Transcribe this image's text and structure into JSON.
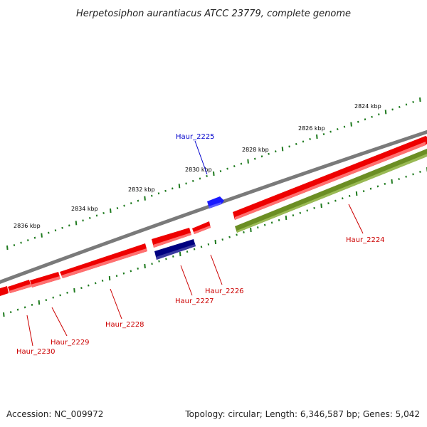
{
  "title": "Herpetosiphon aurantiacus ATCC 23779, complete genome",
  "footer": {
    "accession": "Accession: NC_009972",
    "summary": "Topology: circular; Length: 6,346,587 bp; Genes: 5,042"
  },
  "ruler": {
    "ticks": [
      "2824 kbp",
      "2826 kbp",
      "2828 kbp",
      "2830 kbp",
      "2832 kbp",
      "2834 kbp",
      "2836 kbp"
    ]
  },
  "genes": [
    {
      "id": "Haur_2224",
      "label": "Haur_2224",
      "strand": "forward",
      "color": "#6b8e23",
      "label_color": "#cc0000"
    },
    {
      "id": "Haur_2225",
      "label": "Haur_2225",
      "strand": "forward",
      "color": "#1a1aff",
      "label_color": "#0000cc"
    },
    {
      "id": "Haur_2226",
      "label": "Haur_2226",
      "strand": "reverse",
      "color": "#ee0000",
      "label_color": "#cc0000"
    },
    {
      "id": "Haur_2227",
      "label": "Haur_2227",
      "strand": "reverse",
      "color": "#000080",
      "label_color": "#cc0000"
    },
    {
      "id": "Haur_2228",
      "label": "Haur_2228",
      "strand": "reverse",
      "color": "#ee0000",
      "label_color": "#cc0000"
    },
    {
      "id": "Haur_2229",
      "label": "Haur_2229",
      "strand": "reverse",
      "color": "#ee0000",
      "label_color": "#cc0000"
    },
    {
      "id": "Haur_2230",
      "label": "Haur_2230",
      "strand": "reverse",
      "color": "#ee0000",
      "label_color": "#cc0000"
    }
  ]
}
